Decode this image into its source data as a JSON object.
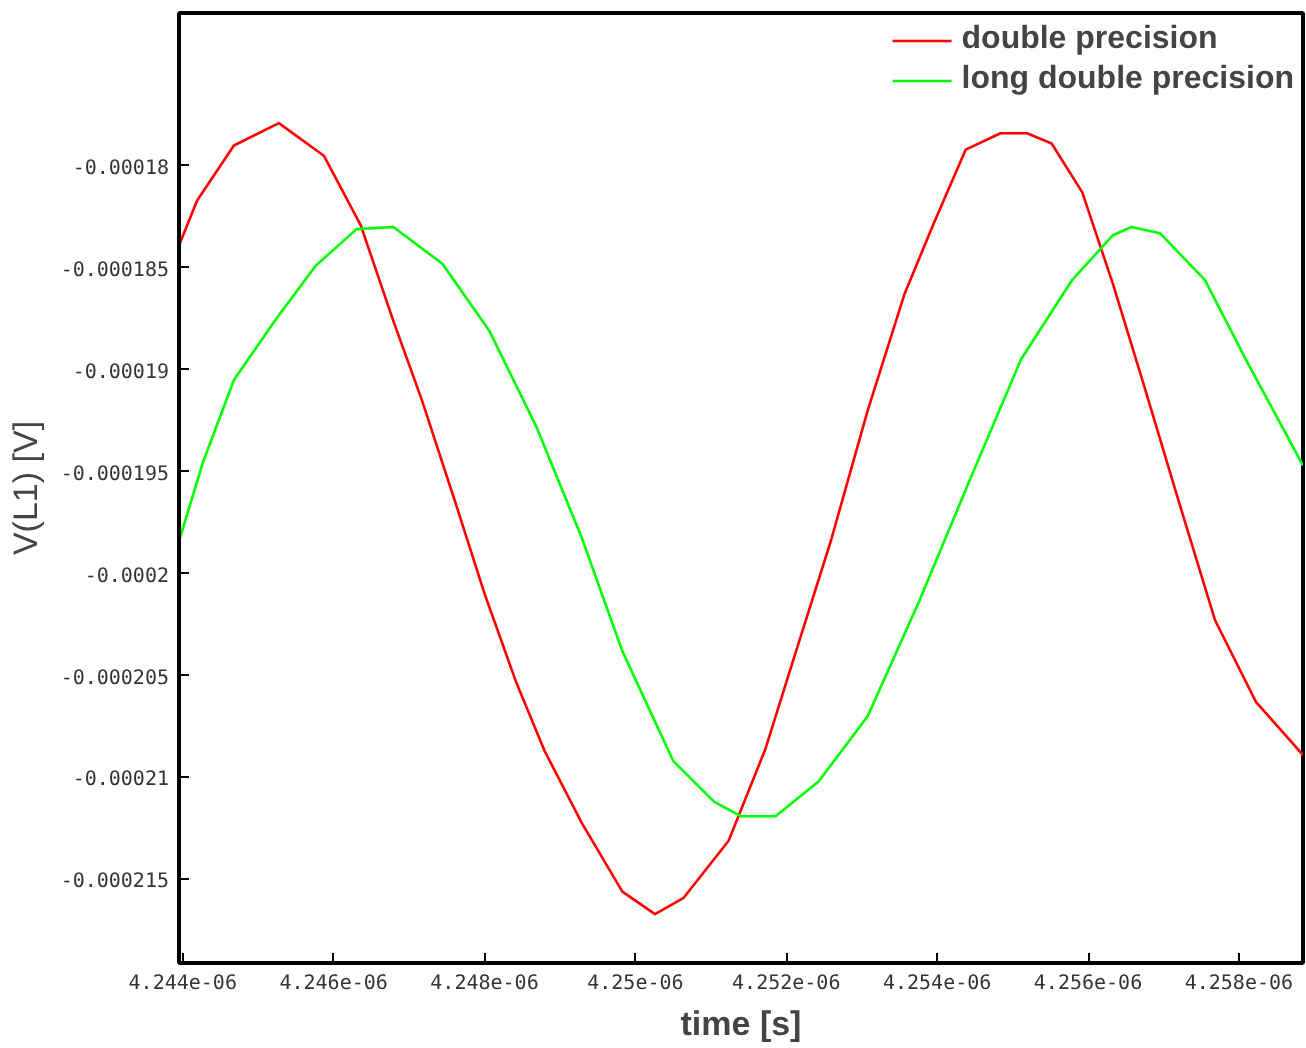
{
  "chart_data": {
    "type": "line",
    "xlabel": "time [s]",
    "ylabel": "V(L1) [V]",
    "xlim": [
      4.24395e-06,
      4.25885e-06
    ],
    "ylim": [
      -0.0002191,
      -0.0001725
    ],
    "xticks": [
      {
        "value": 4.244e-06,
        "label": "4.244e-06"
      },
      {
        "value": 4.246e-06,
        "label": "4.246e-06"
      },
      {
        "value": 4.248e-06,
        "label": "4.248e-06"
      },
      {
        "value": 4.25e-06,
        "label": "4.25e-06"
      },
      {
        "value": 4.252e-06,
        "label": "4.252e-06"
      },
      {
        "value": 4.254e-06,
        "label": "4.254e-06"
      },
      {
        "value": 4.256e-06,
        "label": "4.256e-06"
      },
      {
        "value": 4.258e-06,
        "label": "4.258e-06"
      }
    ],
    "yticks": [
      {
        "value": -0.00018,
        "label": "-0.00018"
      },
      {
        "value": -0.000185,
        "label": "-0.000185"
      },
      {
        "value": -0.00019,
        "label": "-0.00019"
      },
      {
        "value": -0.000195,
        "label": "-0.000195"
      },
      {
        "value": -0.0002,
        "label": "-0.0002"
      },
      {
        "value": -0.000205,
        "label": "-0.000205"
      },
      {
        "value": -0.00021,
        "label": "-0.00021"
      },
      {
        "value": -0.000215,
        "label": "-0.000215"
      }
    ],
    "grid": false,
    "legend": "top right",
    "marker": "none",
    "line_style": "solid",
    "series": [
      {
        "name": "double precision",
        "color": "#ff0000",
        "x": [
          4.24395e-06,
          4.24419e-06,
          4.244678e-06,
          4.245274e-06,
          4.24587e-06,
          4.246358e-06,
          4.246791e-06,
          4.247171e-06,
          4.247604e-06,
          4.248011e-06,
          4.248417e-06,
          4.248797e-06,
          4.249285e-06,
          4.249827e-06,
          4.25026e-06,
          4.25064e-06,
          4.251236e-06,
          4.251724e-06,
          4.25213e-06,
          4.252591e-06,
          4.253079e-06,
          4.253566e-06,
          4.253946e-06,
          4.254379e-06,
          4.25484e-06,
          4.255192e-06,
          4.255518e-06,
          4.255924e-06,
          4.256331e-06,
          4.256737e-06,
          4.257198e-06,
          4.257686e-06,
          4.258228e-06,
          4.25885e-06
        ],
        "values": [
          -0.0001839,
          -0.0001817,
          -0.000179,
          -0.0001779,
          -0.0001795,
          -0.0001829,
          -0.0001876,
          -0.0001915,
          -0.0001964,
          -0.0002011,
          -0.0002053,
          -0.0002087,
          -0.0002122,
          -0.0002156,
          -0.0002167,
          -0.0002159,
          -0.0002131,
          -0.0002086,
          -0.0002038,
          -0.0001984,
          -0.000192,
          -0.0001863,
          -0.0001829,
          -0.0001792,
          -0.0001784,
          -0.0001784,
          -0.0001789,
          -0.0001813,
          -0.0001858,
          -0.0001907,
          -0.0001964,
          -0.0002023,
          -0.0002063,
          -0.0002089
        ]
      },
      {
        "name": "long double precision",
        "color": "#00ff00",
        "x": [
          4.24395e-06,
          4.244271e-06,
          4.244678e-06,
          4.24522e-06,
          4.245762e-06,
          4.246304e-06,
          4.246791e-06,
          4.247442e-06,
          4.248065e-06,
          4.248688e-06,
          4.249285e-06,
          4.249827e-06,
          4.250504e-06,
          4.251046e-06,
          4.251398e-06,
          4.251859e-06,
          4.252428e-06,
          4.253079e-06,
          4.253756e-06,
          4.254434e-06,
          4.255111e-06,
          4.255789e-06,
          4.256331e-06,
          4.256575e-06,
          4.256954e-06,
          4.257551e-06,
          4.258093e-06,
          4.25885e-06
        ],
        "values": [
          -0.0001984,
          -0.0001945,
          -0.0001905,
          -0.0001876,
          -0.0001849,
          -0.0001831,
          -0.000183,
          -0.0001848,
          -0.0001881,
          -0.0001928,
          -0.0001982,
          -0.0002038,
          -0.0002092,
          -0.0002112,
          -0.0002119,
          -0.0002119,
          -0.0002102,
          -0.000207,
          -0.0002014,
          -0.0001954,
          -0.0001895,
          -0.0001856,
          -0.0001834,
          -0.000183,
          -0.0001833,
          -0.0001856,
          -0.0001895,
          -0.0001947
        ]
      }
    ]
  }
}
